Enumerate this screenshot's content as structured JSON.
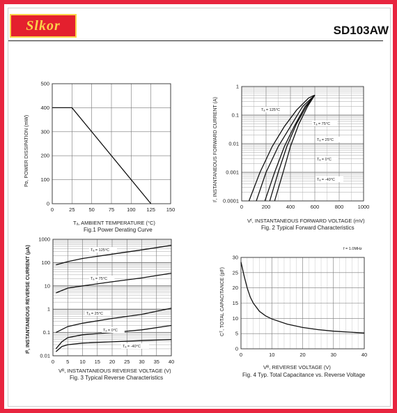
{
  "header": {
    "logo_text": "Slkor",
    "part_number": "SD103AW",
    "accent_color": "#e8253f",
    "logo_bg": "#e4202e",
    "logo_fg": "#fbd24a"
  },
  "figures": [
    {
      "xlabel": "Tₐ, AMBIENT TEMPERATURE (°C)",
      "ylabel": "Pᴅ, POWER DISSIPATION (mW)",
      "caption": "Fig.1  Power Derating Curve",
      "xticks": [
        "0",
        "25",
        "50",
        "75",
        "100",
        "125",
        "150"
      ],
      "yticks": [
        "0",
        "100",
        "200",
        "300",
        "400",
        "500"
      ]
    },
    {
      "xlabel": "Vᶠ, INSTANTANEOUS FORWARD VOLTAGE (mV)",
      "ylabel": "Iᶠ, INSTANTANEOUS FORWARD CURRENT (A)",
      "caption": "Fig. 2  Typical Forward Characteristics",
      "xticks": [
        "0",
        "200",
        "400",
        "600",
        "800",
        "1000"
      ],
      "yticks": [
        "1",
        "0.1",
        "0.01",
        "0.001",
        "0.0001"
      ],
      "annotations": [
        "Tₐ = 125°C",
        "Tₐ = 75°C",
        "Tₐ = 25°C",
        "Tₐ = 0°C",
        "Tₐ = -40°C"
      ]
    },
    {
      "xlabel": "Vᴿ, INSTANTANEOUS REVERSE VOLTAGE (V)",
      "ylabel": "Iᴿ, INSTANTANEOUS REVERSE CURRENT (μA)",
      "caption": "Fig. 3  Typical Reverse Characteristics",
      "xticks": [
        "0",
        "5",
        "10",
        "15",
        "20",
        "25",
        "30",
        "35",
        "40"
      ],
      "yticks": [
        "1000",
        "100",
        "10",
        "1",
        "0.1",
        "0.01"
      ],
      "annotations": [
        "Tₐ = 125°C",
        "Tₐ = 75°C",
        "Tₐ = 25°C",
        "Tₐ = 0°C",
        "Tₐ = -40°C"
      ]
    },
    {
      "xlabel": "Vᴿ, REVERSE VOLTAGE (V)",
      "ylabel": "Cᵀ, TOTAL CAPACITANCE (pF)",
      "caption": "Fig. 4  Typ. Total Capacitance vs. Reverse Voltage",
      "xticks": [
        "0",
        "10",
        "20",
        "30",
        "40"
      ],
      "yticks": [
        "0",
        "5",
        "10",
        "15",
        "20",
        "25",
        "30"
      ],
      "annotations": [
        "f = 1.0MHz"
      ]
    }
  ],
  "chart_data": [
    {
      "type": "line",
      "series": [
        {
          "x": [
            0,
            25,
            125
          ],
          "y": [
            400,
            400,
            0
          ]
        }
      ],
      "xlim": [
        0,
        150
      ],
      "ylim": [
        0,
        500
      ],
      "grid": true
    },
    {
      "type": "line",
      "scale_y": "log",
      "xlim": [
        0,
        1000
      ],
      "ylim": [
        0.0001,
        1
      ],
      "grid": true,
      "series": [
        {
          "label": "Tₐ = 125°C",
          "x": [
            60,
            150,
            250,
            350,
            450,
            550,
            600
          ],
          "y": [
            0.0001,
            0.001,
            0.008,
            0.04,
            0.15,
            0.4,
            0.5
          ]
        },
        {
          "label": "Tₐ = 75°C",
          "x": [
            120,
            200,
            300,
            400,
            500,
            600
          ],
          "y": [
            0.0001,
            0.001,
            0.008,
            0.04,
            0.2,
            0.5
          ]
        },
        {
          "label": "Tₐ = 25°C",
          "x": [
            190,
            270,
            350,
            430,
            520,
            600
          ],
          "y": [
            0.0001,
            0.001,
            0.008,
            0.04,
            0.2,
            0.5
          ]
        },
        {
          "label": "Tₐ = 0°C",
          "x": [
            230,
            300,
            370,
            450,
            530,
            600
          ],
          "y": [
            0.0001,
            0.001,
            0.008,
            0.05,
            0.2,
            0.5
          ]
        },
        {
          "label": "Tₐ = -40°C",
          "x": [
            270,
            340,
            400,
            470,
            540,
            600
          ],
          "y": [
            0.0001,
            0.001,
            0.008,
            0.05,
            0.2,
            0.5
          ]
        }
      ]
    },
    {
      "type": "line",
      "scale_y": "log",
      "xlim": [
        0,
        40
      ],
      "ylim": [
        0.01,
        1000
      ],
      "grid": true,
      "series": [
        {
          "label": "Tₐ = 125°C",
          "x": [
            1,
            5,
            10,
            20,
            30,
            40
          ],
          "y": [
            80,
            110,
            150,
            230,
            350,
            550
          ]
        },
        {
          "label": "Tₐ = 75°C",
          "x": [
            1,
            5,
            10,
            20,
            30,
            40
          ],
          "y": [
            5,
            8,
            10,
            15,
            22,
            35
          ]
        },
        {
          "label": "Tₐ = 25°C",
          "x": [
            1,
            5,
            10,
            20,
            30,
            40
          ],
          "y": [
            0.1,
            0.18,
            0.25,
            0.4,
            0.6,
            1.1
          ]
        },
        {
          "label": "Tₐ = 0°C",
          "x": [
            1,
            3,
            5,
            10,
            20,
            30,
            40
          ],
          "y": [
            0.02,
            0.04,
            0.06,
            0.08,
            0.1,
            0.13,
            0.2
          ]
        },
        {
          "label": "Tₐ = -40°C",
          "x": [
            1,
            3,
            5,
            10,
            20,
            30,
            40
          ],
          "y": [
            0.015,
            0.025,
            0.03,
            0.035,
            0.04,
            0.045,
            0.05
          ]
        }
      ]
    },
    {
      "type": "line",
      "xlim": [
        0,
        40
      ],
      "ylim": [
        0,
        30
      ],
      "grid": true,
      "series": [
        {
          "label": "f = 1.0MHz",
          "x": [
            0,
            1,
            2,
            3,
            4,
            6,
            8,
            10,
            15,
            20,
            25,
            30,
            35,
            40
          ],
          "y": [
            28.5,
            24,
            20,
            17,
            15,
            12.3,
            10.8,
            9.8,
            8.1,
            7,
            6.3,
            5.8,
            5.5,
            5.2
          ]
        }
      ]
    }
  ]
}
